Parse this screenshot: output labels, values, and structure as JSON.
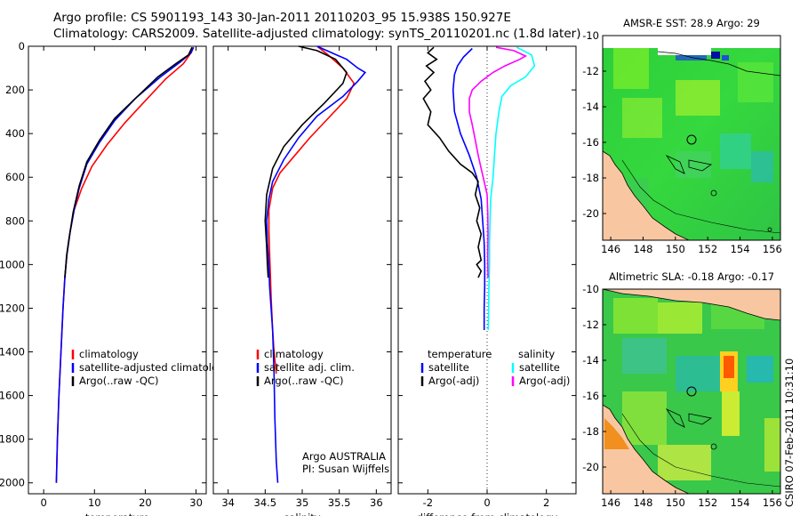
{
  "header": {
    "line1": "Argo profile: CS 5901193_143 30-Jan-2011 20110203_95 15.938S 150.927E",
    "line2": "Climatology: CARS2009. Satellite-adjusted climatology: synTS_20110201.nc (1.8d later)"
  },
  "credit": "CSIRO 07-Feb-2011 10:31:10",
  "chart_data": [
    {
      "id": "temperature",
      "type": "line",
      "xlabel": "temperature",
      "xlim": [
        -3,
        32
      ],
      "ylim": [
        2050,
        0
      ],
      "xticks": [
        0,
        10,
        20,
        30
      ],
      "yticks": [
        0,
        200,
        400,
        600,
        800,
        1000,
        1200,
        1400,
        1600,
        1800,
        2000
      ],
      "legend": [
        "climatology",
        "satellite-adjusted climatology",
        "Argo(..raw -QC)"
      ],
      "series": [
        {
          "name": "climatology",
          "color": "#ff0000",
          "points": [
            [
              29.5,
              5
            ],
            [
              29,
              30
            ],
            [
              27.5,
              80
            ],
            [
              24,
              150
            ],
            [
              20,
              250
            ],
            [
              16,
              350
            ],
            [
              12.5,
              450
            ],
            [
              9.5,
              550
            ],
            [
              7.5,
              650
            ],
            [
              6,
              750
            ],
            [
              5.2,
              850
            ],
            [
              4.6,
              950
            ],
            [
              4.2,
              1050
            ],
            [
              3.8,
              1200
            ],
            [
              3.4,
              1400
            ],
            [
              3,
              1600
            ],
            [
              2.7,
              1800
            ],
            [
              2.5,
              2000
            ]
          ]
        },
        {
          "name": "satellite-adjusted climatology",
          "color": "#0000ff",
          "points": [
            [
              29.5,
              5
            ],
            [
              29,
              30
            ],
            [
              27,
              70
            ],
            [
              23,
              140
            ],
            [
              18,
              240
            ],
            [
              14,
              340
            ],
            [
              11,
              440
            ],
            [
              8.5,
              540
            ],
            [
              7,
              650
            ],
            [
              6,
              750
            ],
            [
              5.2,
              850
            ],
            [
              4.6,
              950
            ],
            [
              4.2,
              1050
            ],
            [
              3.8,
              1200
            ],
            [
              3.4,
              1400
            ],
            [
              3,
              1600
            ],
            [
              2.7,
              1800
            ],
            [
              2.5,
              2000
            ]
          ]
        },
        {
          "name": "Argo(..raw -QC)",
          "color": "#000000",
          "points": [
            [
              29.2,
              5
            ],
            [
              28.5,
              40
            ],
            [
              26,
              80
            ],
            [
              22.5,
              140
            ],
            [
              18,
              240
            ],
            [
              14,
              330
            ],
            [
              11,
              430
            ],
            [
              8.5,
              530
            ],
            [
              7,
              640
            ],
            [
              5.8,
              760
            ],
            [
              5,
              880
            ],
            [
              4.5,
              960
            ],
            [
              4.2,
              1060
            ]
          ]
        }
      ]
    },
    {
      "id": "salinity",
      "type": "line",
      "xlabel": "salinity",
      "xlim": [
        33.8,
        36.2
      ],
      "ylim": [
        2050,
        0
      ],
      "xticks": [
        34,
        34.5,
        35,
        35.5,
        36
      ],
      "legend": [
        "climatology",
        "satellite adj. clim.",
        "Argo(..raw -QC)"
      ],
      "annotation": [
        "Argo AUSTRALIA",
        "PI: Susan Wijffels"
      ],
      "series": [
        {
          "name": "climatology",
          "color": "#ff0000",
          "points": [
            [
              35.2,
              0
            ],
            [
              35.35,
              40
            ],
            [
              35.55,
              100
            ],
            [
              35.7,
              170
            ],
            [
              35.6,
              240
            ],
            [
              35.35,
              330
            ],
            [
              35.1,
              420
            ],
            [
              34.9,
              500
            ],
            [
              34.7,
              580
            ],
            [
              34.6,
              650
            ],
            [
              34.55,
              750
            ],
            [
              34.55,
              850
            ],
            [
              34.56,
              950
            ],
            [
              34.57,
              1050
            ],
            [
              34.58,
              1150
            ],
            [
              34.6,
              1300
            ],
            [
              34.62,
              1400
            ],
            [
              34.65,
              1500
            ]
          ]
        },
        {
          "name": "satellite adj. clim.",
          "color": "#0000ff",
          "points": [
            [
              35.2,
              0
            ],
            [
              35.4,
              30
            ],
            [
              35.6,
              60
            ],
            [
              35.75,
              100
            ],
            [
              35.85,
              120
            ],
            [
              35.75,
              160
            ],
            [
              35.55,
              230
            ],
            [
              35.2,
              320
            ],
            [
              34.95,
              420
            ],
            [
              34.75,
              520
            ],
            [
              34.6,
              620
            ],
            [
              34.55,
              700
            ],
            [
              34.52,
              800
            ],
            [
              34.53,
              900
            ],
            [
              34.55,
              1000
            ],
            [
              34.56,
              1100
            ],
            [
              34.58,
              1200
            ],
            [
              34.6,
              1300
            ],
            [
              34.62,
              1500
            ],
            [
              34.63,
              1700
            ],
            [
              34.65,
              1900
            ],
            [
              34.67,
              2000
            ]
          ]
        },
        {
          "name": "Argo(..raw -QC)",
          "color": "#000000",
          "points": [
            [
              34.95,
              0
            ],
            [
              35.2,
              20
            ],
            [
              35.45,
              60
            ],
            [
              35.6,
              120
            ],
            [
              35.55,
              170
            ],
            [
              35.3,
              260
            ],
            [
              35.0,
              360
            ],
            [
              34.75,
              460
            ],
            [
              34.6,
              560
            ],
            [
              34.52,
              680
            ],
            [
              34.5,
              800
            ],
            [
              34.52,
              920
            ],
            [
              34.53,
              1000
            ],
            [
              34.54,
              1060
            ]
          ]
        }
      ]
    },
    {
      "id": "difference",
      "type": "line",
      "xlabel": "difference from climatology",
      "xlim": [
        -3,
        3
      ],
      "ylim": [
        2050,
        0
      ],
      "xticks": [
        -2,
        0,
        2
      ],
      "legend_temperature": {
        "title": "temperature",
        "items": [
          "satellite",
          "Argo(-adj)"
        ]
      },
      "legend_salinity": {
        "title": "salinity",
        "items": [
          "satellite",
          "Argo(-adj)"
        ]
      },
      "series": [
        {
          "name": "temperature satellite",
          "color": "#0000ff",
          "points": [
            [
              -0.5,
              10
            ],
            [
              -0.8,
              50
            ],
            [
              -1,
              90
            ],
            [
              -1.1,
              130
            ],
            [
              -1.15,
              200
            ],
            [
              -1.1,
              300
            ],
            [
              -0.9,
              400
            ],
            [
              -0.6,
              500
            ],
            [
              -0.35,
              600
            ],
            [
              -0.2,
              700
            ],
            [
              -0.15,
              800
            ],
            [
              -0.1,
              900
            ],
            [
              -0.08,
              1000
            ],
            [
              -0.08,
              1100
            ],
            [
              -0.1,
              1200
            ],
            [
              -0.1,
              1300
            ]
          ]
        },
        {
          "name": "temperature Argo(-adj)",
          "color": "#000000",
          "points": [
            [
              -1.8,
              5
            ],
            [
              -2.0,
              30
            ],
            [
              -1.7,
              60
            ],
            [
              -2.05,
              90
            ],
            [
              -1.8,
              120
            ],
            [
              -2.1,
              160
            ],
            [
              -1.9,
              200
            ],
            [
              -2.15,
              240
            ],
            [
              -1.9,
              300
            ],
            [
              -2.0,
              360
            ],
            [
              -1.6,
              420
            ],
            [
              -1.3,
              480
            ],
            [
              -0.9,
              540
            ],
            [
              -0.5,
              580
            ],
            [
              -0.3,
              620
            ],
            [
              -0.4,
              680
            ],
            [
              -0.25,
              740
            ],
            [
              -0.35,
              800
            ],
            [
              -0.2,
              860
            ],
            [
              -0.3,
              920
            ],
            [
              -0.2,
              980
            ],
            [
              -0.35,
              1000
            ],
            [
              -0.2,
              1030
            ],
            [
              -0.3,
              1060
            ]
          ]
        },
        {
          "name": "salinity satellite",
          "color": "#00ffff",
          "points": [
            [
              1.0,
              5
            ],
            [
              1.5,
              40
            ],
            [
              1.6,
              90
            ],
            [
              1.3,
              140
            ],
            [
              0.8,
              180
            ],
            [
              0.5,
              230
            ],
            [
              0.4,
              300
            ],
            [
              0.3,
              400
            ],
            [
              0.25,
              500
            ],
            [
              0.2,
              600
            ],
            [
              0.12,
              700
            ],
            [
              0.1,
              800
            ],
            [
              0.08,
              900
            ],
            [
              0.08,
              1000
            ],
            [
              0.06,
              1100
            ],
            [
              0.05,
              1200
            ],
            [
              0.04,
              1300
            ]
          ]
        },
        {
          "name": "salinity Argo(-adj)",
          "color": "#ff00ff",
          "points": [
            [
              0.3,
              5
            ],
            [
              0.9,
              20
            ],
            [
              1.3,
              45
            ],
            [
              1.1,
              60
            ],
            [
              0.6,
              90
            ],
            [
              0.2,
              120
            ],
            [
              -0.2,
              160
            ],
            [
              -0.5,
              200
            ],
            [
              -0.6,
              240
            ],
            [
              -0.6,
              300
            ],
            [
              -0.5,
              360
            ],
            [
              -0.4,
              430
            ],
            [
              -0.3,
              500
            ],
            [
              -0.2,
              560
            ],
            [
              -0.1,
              620
            ],
            [
              0.0,
              680
            ],
            [
              0.02,
              760
            ],
            [
              0.03,
              860
            ],
            [
              0.02,
              960
            ],
            [
              0.03,
              1060
            ]
          ]
        }
      ]
    },
    {
      "id": "sst-map",
      "type": "heatmap",
      "title": "AMSR-E SST: 28.9 Argo: 29",
      "xticks": [
        146,
        148,
        150,
        152,
        154,
        156
      ],
      "yticks": [
        -10,
        -12,
        -14,
        -16,
        -18,
        -20
      ],
      "xlim": [
        145.5,
        156.5
      ],
      "ylim": [
        -21.5,
        -10
      ]
    },
    {
      "id": "sla-map",
      "type": "heatmap",
      "title": "Altimetric SLA: -0.18 Argo: -0.17",
      "xticks": [
        146,
        148,
        150,
        152,
        154,
        156
      ],
      "yticks": [
        -10,
        -12,
        -14,
        -16,
        -18,
        -20
      ],
      "xlim": [
        145.5,
        156.5
      ],
      "ylim": [
        -21.5,
        -10
      ]
    }
  ]
}
